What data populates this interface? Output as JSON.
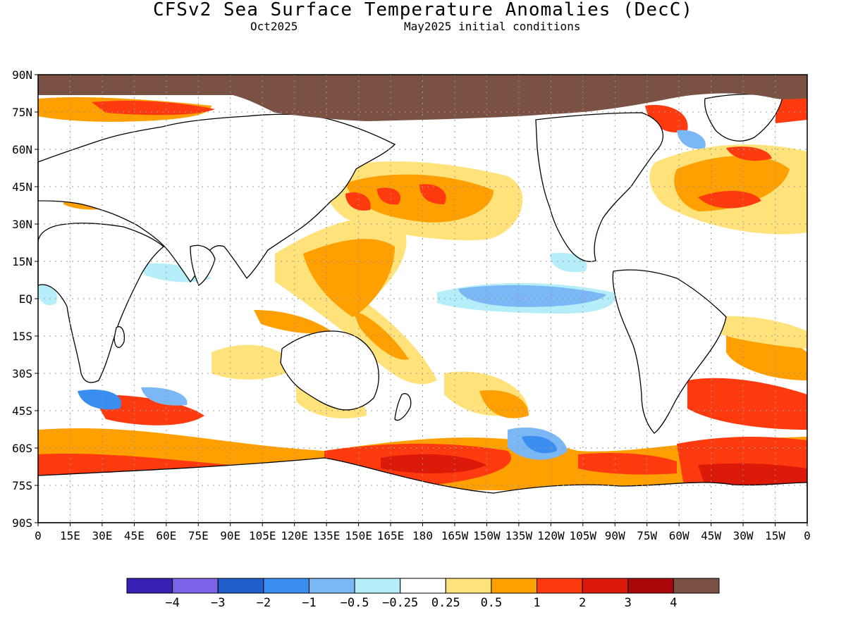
{
  "title": "CFSv2 Sea Surface Temperature Anomalies (DecC)",
  "subtitle_left": "Oct2025",
  "subtitle_right": "May2025 initial conditions",
  "map": {
    "lat_ticks": [
      "90N",
      "75N",
      "60N",
      "45N",
      "30N",
      "15N",
      "EQ",
      "15S",
      "30S",
      "45S",
      "60S",
      "75S",
      "90S"
    ],
    "lon_ticks": [
      "0",
      "15E",
      "30E",
      "45E",
      "60E",
      "75E",
      "90E",
      "105E",
      "120E",
      "135E",
      "150E",
      "165E",
      "180",
      "165W",
      "150W",
      "135W",
      "120W",
      "105W",
      "90W",
      "75W",
      "60W",
      "45W",
      "30W",
      "15W",
      "0"
    ],
    "land_color": "#7b5143",
    "grid": "dotted"
  },
  "colorbar": {
    "colors": [
      "#3a1fb5",
      "#7d63e8",
      "#1f5fcc",
      "#3a8ef0",
      "#7bb6f5",
      "#b5eef8",
      "#ffffff",
      "#ffe37a",
      "#ff9f00",
      "#ff3a0f",
      "#dc1a0a",
      "#a8080a",
      "#7b5143"
    ],
    "labels": [
      "−4",
      "−3",
      "−2",
      "−1",
      "−0.5",
      "−0.25",
      "0.25",
      "0.5",
      "1",
      "2",
      "3",
      "4"
    ]
  }
}
